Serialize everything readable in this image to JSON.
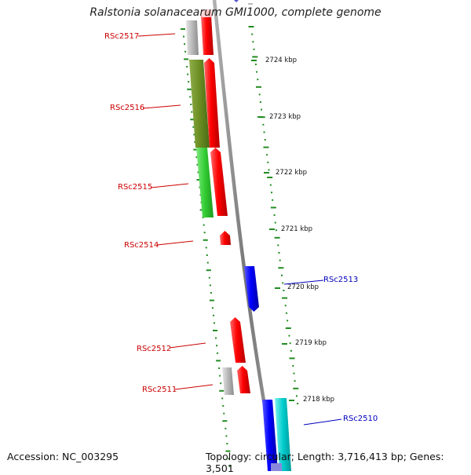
{
  "title": "Ralstonia solanacearum GMI1000, complete genome",
  "footer": {
    "accession": "Accession: NC_003295",
    "summary": "Topology: circular; Length: 3,716,413 bp; Genes: 3,501"
  },
  "kbp_ticks": [
    {
      "label": "2724 kbp"
    },
    {
      "label": "2723 kbp"
    },
    {
      "label": "2722 kbp"
    },
    {
      "label": "2721 kbp"
    },
    {
      "label": "2720 kbp"
    },
    {
      "label": "2719 kbp"
    },
    {
      "label": "2718 kbp"
    }
  ],
  "genes": [
    {
      "label": "RSc2517",
      "strand": "reverse",
      "color": "#cc0000"
    },
    {
      "label": "RSc2516",
      "strand": "reverse",
      "color": "#cc0000"
    },
    {
      "label": "RSc2515",
      "strand": "reverse",
      "color": "#cc0000"
    },
    {
      "label": "RSc2514",
      "strand": "reverse",
      "color": "#cc0000"
    },
    {
      "label": "RSc2513",
      "strand": "forward",
      "color": "#0000bb"
    },
    {
      "label": "RSc2512",
      "strand": "reverse",
      "color": "#cc0000"
    },
    {
      "label": "RSc2511",
      "strand": "reverse",
      "color": "#cc0000"
    },
    {
      "label": "RSc2510",
      "strand": "forward",
      "color": "#0000bb"
    }
  ],
  "colors": {
    "reverse_cds": "#ff0000",
    "forward_cds": "#0000ff",
    "cog_olive": "#6b8e23",
    "cog_green": "#33cc33",
    "cog_cyan": "#00cccc",
    "cog_grey": "#b0b0b0",
    "backbone": "#888888",
    "gc_dots": "#228b22"
  }
}
